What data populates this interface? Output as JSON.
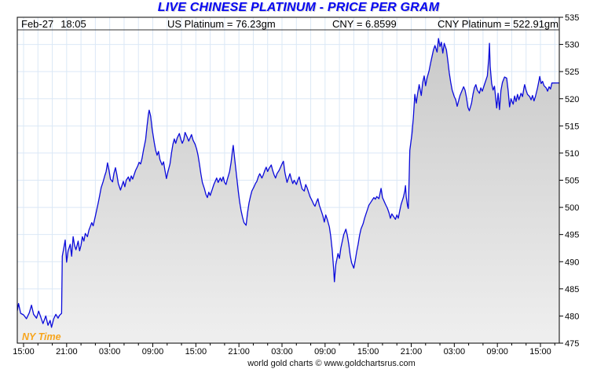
{
  "title": "LIVE CHINESE PLATINUM - PRICE PER GRAM",
  "header": {
    "date": "Feb-27",
    "time": "18:05",
    "us_platinum": "US Platinum = 76.23gm",
    "cny_rate": "CNY = 6.8599",
    "cny_platinum": "CNY Platinum = 522.91gm"
  },
  "ny_time_label": "NY Time",
  "footer": "world gold charts © www.goldchartsrus.com",
  "colors": {
    "title_blue": "#0707f2",
    "line_blue": "#0b0bdb",
    "grid_blue": "#dbe8f6",
    "fill_top_gray": "#c9c9c9",
    "fill_bottom_gray": "#efefef",
    "ny_time_orange": "#f7a51d",
    "frame_black": "#000000"
  },
  "chart_data": {
    "type": "area",
    "title": "LIVE CHINESE PLATINUM - PRICE PER GRAM",
    "series_name": "CNY Platinum price per gram",
    "last_value": 522.91,
    "ylim": [
      475,
      535
    ],
    "y_axis_side": "right",
    "y_ticks": [
      475,
      480,
      485,
      490,
      495,
      500,
      505,
      510,
      515,
      520,
      525,
      530,
      535
    ],
    "x_tick_hours": [
      0,
      6,
      12,
      18,
      24,
      30,
      36,
      42,
      48,
      54,
      60,
      66,
      72
    ],
    "x_tick_labels": [
      "15:00",
      "21:00",
      "03:00",
      "09:00",
      "15:00",
      "21:00",
      "03:00",
      "09:00",
      "15:00",
      "21:00",
      "03:00",
      "09:00",
      "15:00"
    ],
    "x_minor_grid_step_hours": 2,
    "timezone_note": "NY Time",
    "grid": true,
    "points": [
      [
        -0.9,
        480.8
      ],
      [
        -0.7,
        482.3
      ],
      [
        -0.4,
        480.5
      ],
      [
        0,
        480.2
      ],
      [
        0.4,
        479.5
      ],
      [
        0.8,
        480.6
      ],
      [
        1.1,
        482
      ],
      [
        1.4,
        480.3
      ],
      [
        1.8,
        479.6
      ],
      [
        2.1,
        480.9
      ],
      [
        2.4,
        479.8
      ],
      [
        2.7,
        478.6
      ],
      [
        3.1,
        480
      ],
      [
        3.4,
        478.3
      ],
      [
        3.7,
        479.2
      ],
      [
        3.9,
        477.9
      ],
      [
        4.2,
        479.5
      ],
      [
        4.5,
        480.3
      ],
      [
        4.8,
        479.6
      ],
      [
        5,
        480.1
      ],
      [
        5.3,
        480.5
      ],
      [
        5.4,
        491
      ],
      [
        5.6,
        492.5
      ],
      [
        5.8,
        494
      ],
      [
        6,
        489.9
      ],
      [
        6.2,
        492
      ],
      [
        6.5,
        493.2
      ],
      [
        6.7,
        491
      ],
      [
        6.9,
        494.6
      ],
      [
        7.1,
        493
      ],
      [
        7.3,
        492.2
      ],
      [
        7.6,
        493.8
      ],
      [
        7.8,
        492
      ],
      [
        8,
        493
      ],
      [
        8.2,
        494.6
      ],
      [
        8.4,
        493.8
      ],
      [
        8.6,
        495.2
      ],
      [
        8.9,
        494.6
      ],
      [
        9.1,
        495.8
      ],
      [
        9.3,
        496.5
      ],
      [
        9.5,
        497.2
      ],
      [
        9.7,
        496.6
      ],
      [
        10,
        498.4
      ],
      [
        10.2,
        499.6
      ],
      [
        10.4,
        500.8
      ],
      [
        10.6,
        502.2
      ],
      [
        10.8,
        503.6
      ],
      [
        11.1,
        504.8
      ],
      [
        11.3,
        505.8
      ],
      [
        11.5,
        506.6
      ],
      [
        11.7,
        508.2
      ],
      [
        11.9,
        506.8
      ],
      [
        12.1,
        505.2
      ],
      [
        12.4,
        504.7
      ],
      [
        12.6,
        506.3
      ],
      [
        12.8,
        507.3
      ],
      [
        13,
        506
      ],
      [
        13.2,
        504.4
      ],
      [
        13.5,
        503.2
      ],
      [
        13.7,
        504
      ],
      [
        13.9,
        504.8
      ],
      [
        14.1,
        503.8
      ],
      [
        14.3,
        505
      ],
      [
        14.6,
        505.6
      ],
      [
        14.8,
        504.8
      ],
      [
        15,
        505.8
      ],
      [
        15.2,
        505.2
      ],
      [
        15.4,
        506
      ],
      [
        15.6,
        506.8
      ],
      [
        15.9,
        507.6
      ],
      [
        16.1,
        508.3
      ],
      [
        16.3,
        508
      ],
      [
        16.5,
        509
      ],
      [
        16.7,
        510.5
      ],
      [
        17,
        512.5
      ],
      [
        17.2,
        515
      ],
      [
        17.4,
        517.2
      ],
      [
        17.5,
        517.9
      ],
      [
        17.7,
        516.8
      ],
      [
        17.9,
        514.5
      ],
      [
        18.2,
        512
      ],
      [
        18.4,
        510.5
      ],
      [
        18.6,
        509.6
      ],
      [
        18.8,
        510.3
      ],
      [
        19,
        508.8
      ],
      [
        19.3,
        507.8
      ],
      [
        19.5,
        508.4
      ],
      [
        19.7,
        506.8
      ],
      [
        19.9,
        505.3
      ],
      [
        20.1,
        506.5
      ],
      [
        20.4,
        508
      ],
      [
        20.6,
        510
      ],
      [
        20.8,
        511.6
      ],
      [
        21,
        512.6
      ],
      [
        21.2,
        511.8
      ],
      [
        21.4,
        512.8
      ],
      [
        21.7,
        513.6
      ],
      [
        21.9,
        512.6
      ],
      [
        22.1,
        511.8
      ],
      [
        22.3,
        512.4
      ],
      [
        22.5,
        513.8
      ],
      [
        22.8,
        512.9
      ],
      [
        23,
        512.2
      ],
      [
        23.2,
        512.8
      ],
      [
        23.4,
        513.4
      ],
      [
        23.6,
        512.4
      ],
      [
        23.9,
        511.6
      ],
      [
        24.1,
        510.8
      ],
      [
        24.3,
        509.6
      ],
      [
        24.5,
        508
      ],
      [
        24.7,
        506.2
      ],
      [
        24.9,
        504.6
      ],
      [
        25.2,
        503.4
      ],
      [
        25.4,
        502.4
      ],
      [
        25.6,
        501.8
      ],
      [
        25.8,
        502.8
      ],
      [
        26,
        502.2
      ],
      [
        26.3,
        503.4
      ],
      [
        26.5,
        504.2
      ],
      [
        26.7,
        504.8
      ],
      [
        26.9,
        505.4
      ],
      [
        27.1,
        504.6
      ],
      [
        27.4,
        505.4
      ],
      [
        27.6,
        504.8
      ],
      [
        27.8,
        505.6
      ],
      [
        28,
        504.6
      ],
      [
        28.2,
        504.2
      ],
      [
        28.4,
        505.2
      ],
      [
        28.7,
        506.6
      ],
      [
        28.9,
        508.2
      ],
      [
        29.1,
        510.4
      ],
      [
        29.2,
        511.4
      ],
      [
        29.4,
        509
      ],
      [
        29.7,
        505.5
      ],
      [
        29.9,
        503
      ],
      [
        30.1,
        501
      ],
      [
        30.3,
        499.4
      ],
      [
        30.5,
        498.2
      ],
      [
        30.7,
        497.2
      ],
      [
        31,
        496.7
      ],
      [
        31.2,
        499
      ],
      [
        31.4,
        500.8
      ],
      [
        31.6,
        502
      ],
      [
        31.8,
        503
      ],
      [
        32.1,
        503.8
      ],
      [
        32.3,
        504.4
      ],
      [
        32.5,
        504.8
      ],
      [
        32.7,
        505.6
      ],
      [
        32.9,
        506.2
      ],
      [
        33.2,
        505.4
      ],
      [
        33.4,
        506
      ],
      [
        33.6,
        506.8
      ],
      [
        33.8,
        507.4
      ],
      [
        34,
        506.6
      ],
      [
        34.2,
        507.2
      ],
      [
        34.5,
        507.8
      ],
      [
        34.7,
        506.8
      ],
      [
        34.9,
        506
      ],
      [
        35.1,
        505.4
      ],
      [
        35.3,
        506.2
      ],
      [
        35.6,
        506.8
      ],
      [
        35.8,
        507.4
      ],
      [
        36,
        508
      ],
      [
        36.2,
        508.5
      ],
      [
        36.4,
        506.4
      ],
      [
        36.7,
        504.6
      ],
      [
        36.9,
        505.4
      ],
      [
        37.1,
        506.2
      ],
      [
        37.3,
        505.2
      ],
      [
        37.5,
        504.4
      ],
      [
        37.7,
        505
      ],
      [
        38,
        504.2
      ],
      [
        38.2,
        505
      ],
      [
        38.4,
        505.6
      ],
      [
        38.6,
        504.4
      ],
      [
        38.8,
        503.4
      ],
      [
        39.1,
        503
      ],
      [
        39.3,
        504.2
      ],
      [
        39.5,
        503.6
      ],
      [
        39.7,
        502.8
      ],
      [
        39.9,
        502
      ],
      [
        40.2,
        501.2
      ],
      [
        40.4,
        500.6
      ],
      [
        40.6,
        500.2
      ],
      [
        40.8,
        501
      ],
      [
        41,
        501.6
      ],
      [
        41.2,
        500.4
      ],
      [
        41.5,
        499.2
      ],
      [
        41.7,
        498.4
      ],
      [
        41.9,
        497.3
      ],
      [
        42.1,
        498.6
      ],
      [
        42.3,
        497.8
      ],
      [
        42.6,
        496.4
      ],
      [
        42.8,
        494.6
      ],
      [
        43,
        492
      ],
      [
        43.2,
        488.5
      ],
      [
        43.3,
        486.3
      ],
      [
        43.5,
        489.5
      ],
      [
        43.8,
        491.5
      ],
      [
        44,
        490.6
      ],
      [
        44.2,
        492.5
      ],
      [
        44.4,
        493.8
      ],
      [
        44.6,
        495
      ],
      [
        44.9,
        496
      ],
      [
        45.1,
        494.8
      ],
      [
        45.3,
        493.2
      ],
      [
        45.5,
        491.2
      ],
      [
        45.7,
        489.8
      ],
      [
        46,
        488.8
      ],
      [
        46.2,
        490.2
      ],
      [
        46.4,
        491.8
      ],
      [
        46.6,
        493.2
      ],
      [
        46.8,
        494.8
      ],
      [
        47,
        496
      ],
      [
        47.3,
        497
      ],
      [
        47.5,
        498
      ],
      [
        47.7,
        498.8
      ],
      [
        47.9,
        499.6
      ],
      [
        48.1,
        500.4
      ],
      [
        48.4,
        501
      ],
      [
        48.6,
        501.4
      ],
      [
        48.8,
        501.8
      ],
      [
        49,
        501.5
      ],
      [
        49.2,
        502
      ],
      [
        49.5,
        501.6
      ],
      [
        49.8,
        503.5
      ],
      [
        50,
        501.8
      ],
      [
        50.2,
        501.2
      ],
      [
        50.4,
        500.6
      ],
      [
        50.7,
        499.8
      ],
      [
        50.9,
        499
      ],
      [
        51.1,
        498
      ],
      [
        51.3,
        498.8
      ],
      [
        51.5,
        498.4
      ],
      [
        51.8,
        497.8
      ],
      [
        52,
        498.6
      ],
      [
        52.2,
        498
      ],
      [
        52.4,
        499.4
      ],
      [
        52.6,
        500.6
      ],
      [
        52.9,
        501.8
      ],
      [
        53.1,
        503
      ],
      [
        53.2,
        504
      ],
      [
        53.3,
        502
      ],
      [
        53.5,
        500.2
      ],
      [
        53.6,
        499.8
      ],
      [
        53.7,
        505
      ],
      [
        53.8,
        510.5
      ],
      [
        54.1,
        513.5
      ],
      [
        54.3,
        516.5
      ],
      [
        54.5,
        520.8
      ],
      [
        54.7,
        519.2
      ],
      [
        54.9,
        521
      ],
      [
        55.1,
        522.6
      ],
      [
        55.4,
        520.6
      ],
      [
        55.6,
        523
      ],
      [
        55.8,
        524.2
      ],
      [
        56,
        522.4
      ],
      [
        56.2,
        523.8
      ],
      [
        56.5,
        525.2
      ],
      [
        56.7,
        526.6
      ],
      [
        56.9,
        527.8
      ],
      [
        57.1,
        529
      ],
      [
        57.3,
        529.8
      ],
      [
        57.6,
        528.6
      ],
      [
        57.8,
        531.1
      ],
      [
        58,
        529.6
      ],
      [
        58.2,
        530.4
      ],
      [
        58.4,
        528.4
      ],
      [
        58.6,
        530.2
      ],
      [
        58.9,
        529
      ],
      [
        59.1,
        527
      ],
      [
        59.3,
        524.8
      ],
      [
        59.5,
        523
      ],
      [
        59.7,
        521.6
      ],
      [
        60,
        520.4
      ],
      [
        60.2,
        519.8
      ],
      [
        60.4,
        518.6
      ],
      [
        60.6,
        519.6
      ],
      [
        60.8,
        520.6
      ],
      [
        61.1,
        521.6
      ],
      [
        61.3,
        522.2
      ],
      [
        61.5,
        521.6
      ],
      [
        61.7,
        520.2
      ],
      [
        61.9,
        518.4
      ],
      [
        62.1,
        517.8
      ],
      [
        62.4,
        519.2
      ],
      [
        62.6,
        520.8
      ],
      [
        62.8,
        522
      ],
      [
        63,
        522.6
      ],
      [
        63.2,
        521.6
      ],
      [
        63.5,
        521
      ],
      [
        63.7,
        522
      ],
      [
        63.9,
        521.4
      ],
      [
        64.1,
        522.2
      ],
      [
        64.3,
        523
      ],
      [
        64.6,
        524.2
      ],
      [
        64.8,
        527.5
      ],
      [
        64.9,
        530.2
      ],
      [
        65,
        526
      ],
      [
        65.2,
        522.8
      ],
      [
        65.4,
        521.6
      ],
      [
        65.6,
        522.3
      ],
      [
        65.9,
        518.3
      ],
      [
        66.1,
        521
      ],
      [
        66.3,
        518
      ],
      [
        66.5,
        521.5
      ],
      [
        66.7,
        523
      ],
      [
        67,
        524
      ],
      [
        67.3,
        523.8
      ],
      [
        67.5,
        521.5
      ],
      [
        67.7,
        518.5
      ],
      [
        67.9,
        520
      ],
      [
        68.2,
        519
      ],
      [
        68.4,
        520.5
      ],
      [
        68.6,
        519.5
      ],
      [
        68.8,
        520.8
      ],
      [
        69,
        519.8
      ],
      [
        69.3,
        521
      ],
      [
        69.5,
        520.4
      ],
      [
        69.7,
        522
      ],
      [
        69.8,
        522.6
      ],
      [
        70,
        521.6
      ],
      [
        70.2,
        520.8
      ],
      [
        70.5,
        520.4
      ],
      [
        70.7,
        519.8
      ],
      [
        70.9,
        520.6
      ],
      [
        71.1,
        519.6
      ],
      [
        71.3,
        520.4
      ],
      [
        71.6,
        522
      ],
      [
        71.8,
        523.4
      ],
      [
        71.9,
        524.1
      ],
      [
        72.1,
        522.8
      ],
      [
        72.3,
        523.2
      ],
      [
        72.5,
        522.4
      ],
      [
        72.8,
        522
      ],
      [
        73,
        521.4
      ],
      [
        73.2,
        522.2
      ],
      [
        73.4,
        521.8
      ],
      [
        73.6,
        522.9
      ],
      [
        74.6,
        522.91
      ]
    ]
  }
}
